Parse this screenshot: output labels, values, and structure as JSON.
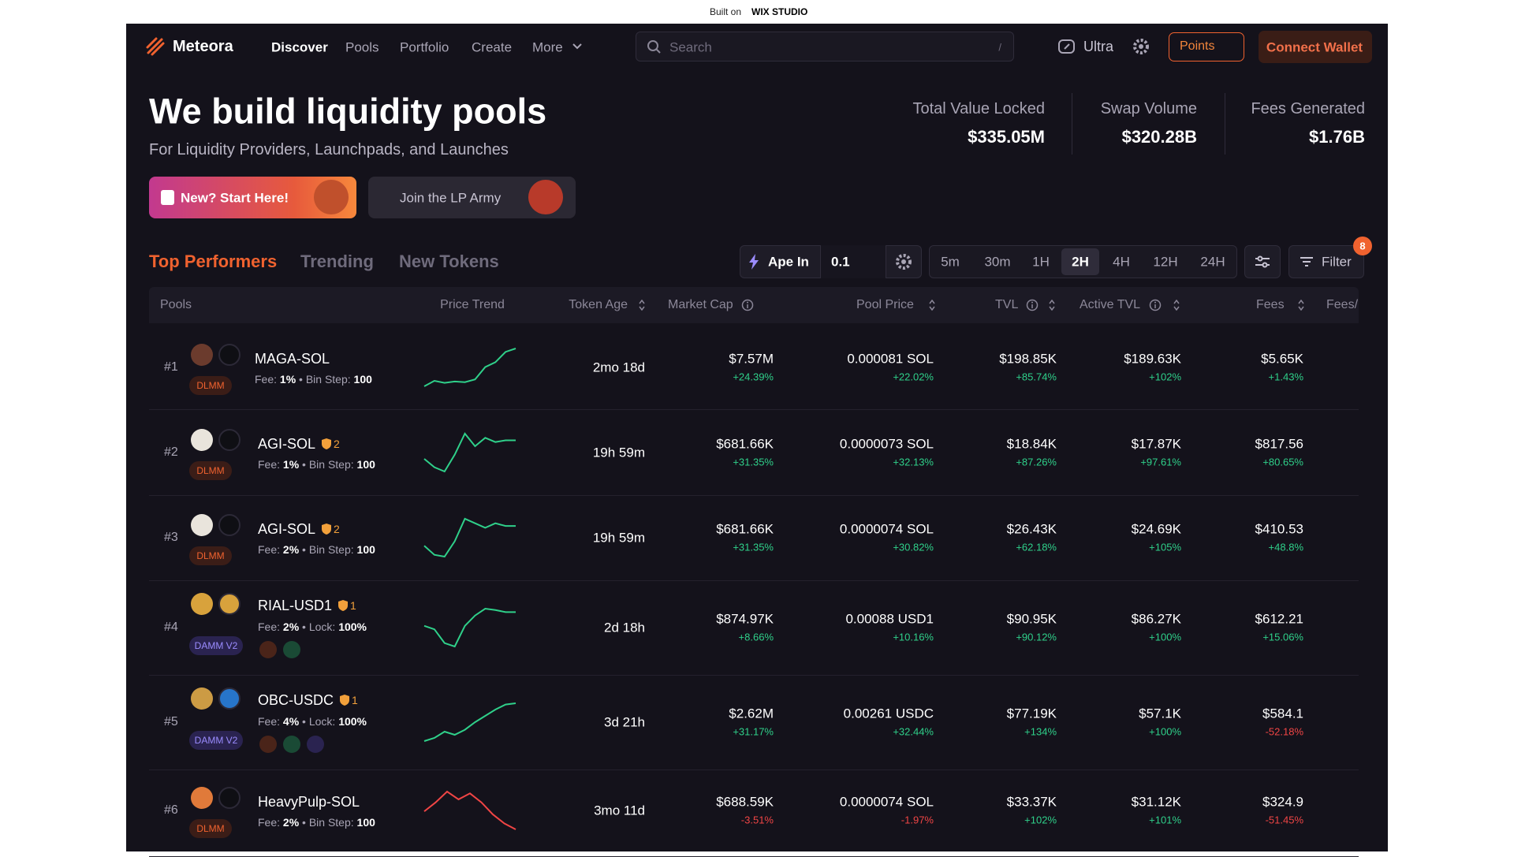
{
  "banner": {
    "prefix": "Built on",
    "brand": "WIX STUDIO"
  },
  "nav": {
    "brand": "Meteora",
    "links": [
      "Discover",
      "Pools",
      "Portfolio",
      "Create",
      "More"
    ],
    "search": "Search",
    "search_key": "/",
    "ultra": "Ultra",
    "points": "Points",
    "connect": "Connect Wallet"
  },
  "hero": {
    "title": "We build liquidity pools",
    "subtitle": "For Liquidity Providers, Launchpads, and Launches",
    "buttons": [
      "New? Start Here!",
      "Join the LP Army"
    ]
  },
  "stats": [
    {
      "label": "Total Value Locked",
      "value": "$335.05M"
    },
    {
      "label": "Swap Volume",
      "value": "$320.28B"
    },
    {
      "label": "Fees Generated",
      "value": "$1.76B"
    }
  ],
  "tabs": [
    "Top Performers",
    "Trending",
    "New Tokens"
  ],
  "controls": {
    "ape": "Ape In",
    "amount": "0.1",
    "timeframes": [
      "5m",
      "30m",
      "1H",
      "2H",
      "4H",
      "12H",
      "24H"
    ],
    "active_timeframe": "2H",
    "filter": "Filter",
    "filter_count": "8"
  },
  "table": {
    "columns": [
      "Pools",
      "Price Trend",
      "Token Age",
      "Market Cap",
      "Pool Price",
      "TVL",
      "Active TVL",
      "Fees",
      "Fees/"
    ],
    "fee_label": "Fee:",
    "rows": [
      {
        "rank": "#1",
        "name": "MAGA-SOL",
        "warning": null,
        "type": "DLMM",
        "fee": "1%",
        "param_label": "Bin Step:",
        "param_value": "100",
        "trend": [
          20,
          28,
          25,
          27,
          26,
          30,
          48,
          55,
          70,
          75
        ],
        "age": "2mo 18d",
        "market_cap": "$7.57M",
        "market_cap_change": "+24.39%",
        "price": "0.000081 SOL",
        "price_change": "+22.02%",
        "tvl": "$198.85K",
        "tvl_change": "+85.74%",
        "active_tvl": "$189.63K",
        "active_tvl_change": "+102%",
        "fees": "$5.65K",
        "fees_change": "+1.43%"
      },
      {
        "rank": "#2",
        "name": "AGI-SOL",
        "warning": "2",
        "type": "DLMM",
        "fee": "1%",
        "param_label": "Bin Step:",
        "param_value": "100",
        "trend": [
          40,
          30,
          25,
          45,
          70,
          55,
          65,
          60,
          62,
          62
        ],
        "age": "19h 59m",
        "market_cap": "$681.66K",
        "market_cap_change": "+31.35%",
        "price": "0.0000073 SOL",
        "price_change": "+32.13%",
        "tvl": "$18.84K",
        "tvl_change": "+87.26%",
        "active_tvl": "$17.87K",
        "active_tvl_change": "+97.61%",
        "fees": "$817.56",
        "fees_change": "+80.65%"
      },
      {
        "rank": "#3",
        "name": "AGI-SOL",
        "warning": "2",
        "type": "DLMM",
        "fee": "2%",
        "param_label": "Bin Step:",
        "param_value": "100",
        "trend": [
          40,
          30,
          28,
          45,
          70,
          65,
          60,
          65,
          62,
          62
        ],
        "age": "19h 59m",
        "market_cap": "$681.66K",
        "market_cap_change": "+31.35%",
        "price": "0.0000074 SOL",
        "price_change": "+30.82%",
        "tvl": "$26.43K",
        "tvl_change": "+62.18%",
        "active_tvl": "$24.69K",
        "active_tvl_change": "+105%",
        "fees": "$410.53",
        "fees_change": "+48.8%"
      },
      {
        "rank": "#4",
        "name": "RIAL-USD1",
        "warning": "1",
        "type": "DAMM V2",
        "fee": "2%",
        "param_label": "Lock:",
        "param_value": "100%",
        "trend": [
          55,
          50,
          30,
          25,
          55,
          70,
          80,
          78,
          75,
          75
        ],
        "age": "2d 18h",
        "market_cap": "$874.97K",
        "market_cap_change": "+8.66%",
        "price": "0.00088 USD1",
        "price_change": "+10.16%",
        "tvl": "$90.95K",
        "tvl_change": "+90.12%",
        "active_tvl": "$86.27K",
        "active_tvl_change": "+100%",
        "fees": "$612.21",
        "fees_change": "+15.06%"
      },
      {
        "rank": "#5",
        "name": "OBC-USDC",
        "warning": "1",
        "type": "DAMM V2",
        "fee": "4%",
        "param_label": "Lock:",
        "param_value": "100%",
        "trend": [
          20,
          25,
          35,
          30,
          38,
          50,
          60,
          70,
          78,
          80
        ],
        "age": "3d 21h",
        "market_cap": "$2.62M",
        "market_cap_change": "+31.17%",
        "price": "0.00261 USDC",
        "price_change": "+32.44%",
        "tvl": "$77.19K",
        "tvl_change": "+134%",
        "active_tvl": "$57.1K",
        "active_tvl_change": "+100%",
        "fees": "$584.1",
        "fees_change": "-52.18%"
      },
      {
        "rank": "#6",
        "name": "HeavyPulp-SOL",
        "warning": null,
        "type": "DLMM",
        "fee": "2%",
        "param_label": "Bin Step:",
        "param_value": "100",
        "trend": [
          45,
          60,
          78,
          65,
          75,
          60,
          40,
          25,
          15
        ],
        "age": "3mo 11d",
        "market_cap": "$688.59K",
        "market_cap_change": "-3.51%",
        "price": "0.0000074 SOL",
        "price_change": "-1.97%",
        "tvl": "$33.37K",
        "tvl_change": "+102%",
        "active_tvl": "$31.12K",
        "active_tvl_change": "+101%",
        "fees": "$324.9",
        "fees_change": "-51.45%"
      }
    ]
  }
}
